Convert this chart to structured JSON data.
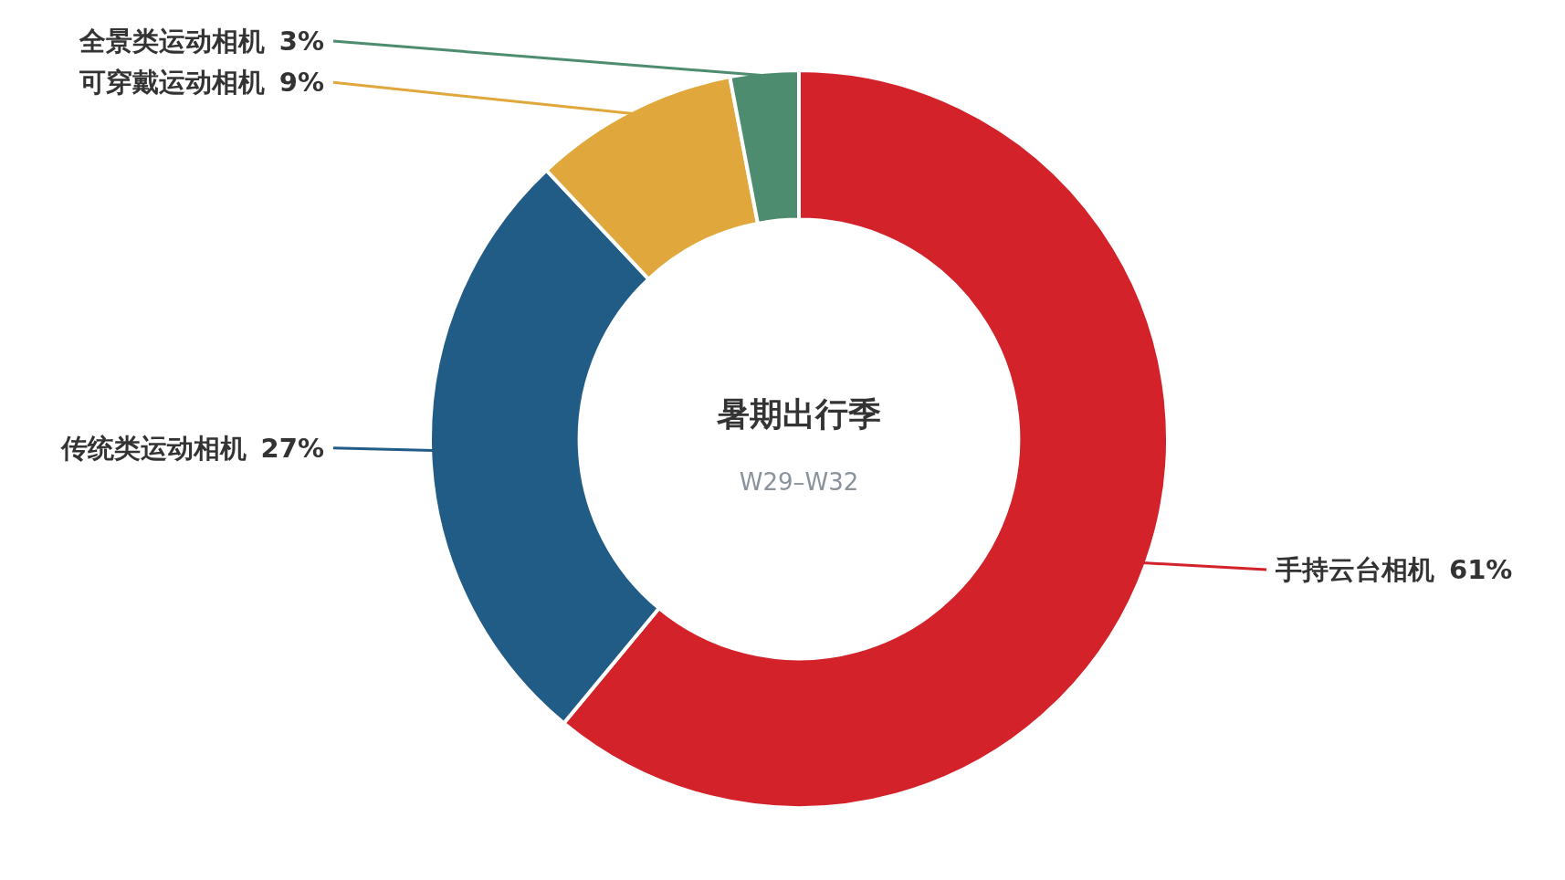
{
  "chart_data": {
    "type": "donut",
    "title": "暑期出行季",
    "subtitle": "W29–W32",
    "categories": [
      "手持云台相机",
      "传统类运动相机",
      "可穿戴运动相机",
      "全景类运动相机"
    ],
    "values": [
      61,
      27,
      9,
      3
    ],
    "colors": [
      "#d3222a",
      "#215c86",
      "#e0a83c",
      "#4d8c6e"
    ],
    "value_labels": [
      "61%",
      "27%",
      "9%",
      "3%"
    ]
  }
}
